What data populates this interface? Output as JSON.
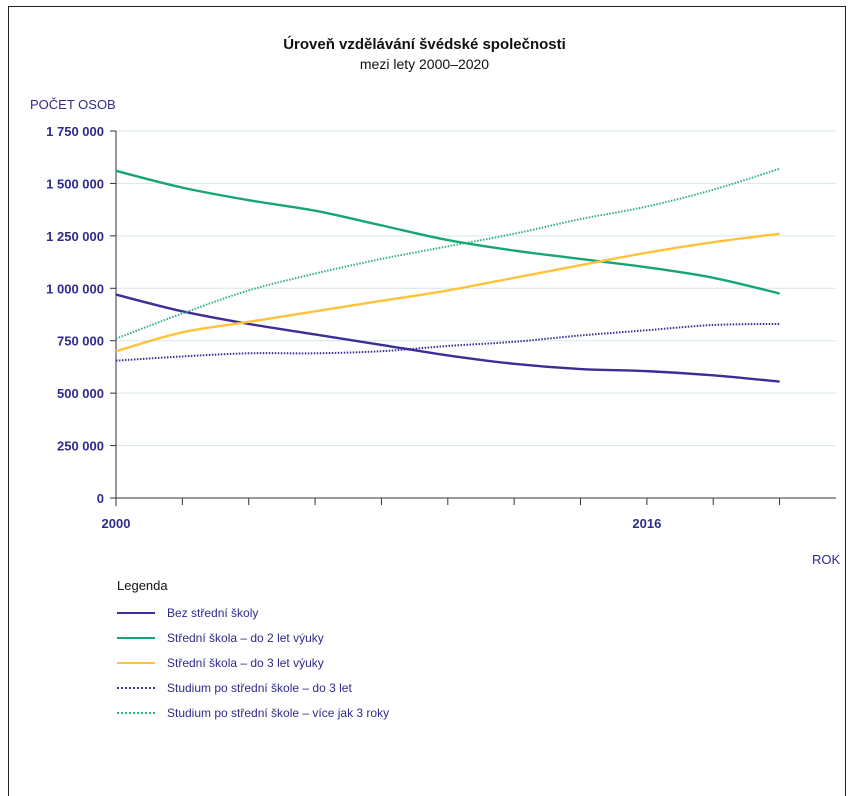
{
  "chart_data": {
    "type": "line",
    "title": "Úroveň vzdělávání švédské společnosti",
    "subtitle": "mezi lety 2000–2020",
    "ylabel": "POČET OSOB",
    "xlabel": "ROK",
    "x": [
      2000,
      2002,
      2004,
      2006,
      2008,
      2010,
      2012,
      2014,
      2016,
      2018,
      2020
    ],
    "x_tick_labels": [
      "2000",
      "2016"
    ],
    "y_ticks": [
      0,
      250000,
      500000,
      750000,
      1000000,
      1250000,
      1500000,
      1750000
    ],
    "y_tick_labels": [
      "0",
      "250 000",
      "500 000",
      "750 000",
      "1 000 000",
      "1 250 000",
      "1 500 000",
      "1 750 000"
    ],
    "xlim": [
      2000,
      2021.7
    ],
    "ylim": [
      0,
      1750000
    ],
    "grid": "horizontal",
    "legend_title": "Legenda",
    "legend_position": "bottom-left",
    "series": [
      {
        "name": "Bez střední školy",
        "color": "#3a2f96",
        "style": "solid",
        "values": [
          970000,
          890000,
          830000,
          780000,
          730000,
          680000,
          640000,
          615000,
          605000,
          585000,
          555000
        ]
      },
      {
        "name": "Střední škola – do 2 let výuky",
        "color": "#16a574",
        "style": "solid",
        "values": [
          1560000,
          1480000,
          1420000,
          1370000,
          1300000,
          1230000,
          1180000,
          1140000,
          1100000,
          1050000,
          975000
        ]
      },
      {
        "name": "Střední škola – do 3 let výuky",
        "color": "#ffc23a",
        "style": "solid",
        "values": [
          700000,
          790000,
          840000,
          890000,
          940000,
          990000,
          1050000,
          1110000,
          1170000,
          1220000,
          1260000
        ]
      },
      {
        "name": "Studium po střední škole – do 3 let",
        "color": "#3a2f96",
        "style": "dotted",
        "values": [
          655000,
          675000,
          690000,
          690000,
          700000,
          725000,
          745000,
          775000,
          800000,
          825000,
          830000
        ]
      },
      {
        "name": "Studium po střední škole – více jak 3 roky",
        "color": "#2fae8c",
        "style": "dotted",
        "values": [
          760000,
          880000,
          990000,
          1070000,
          1140000,
          1200000,
          1260000,
          1330000,
          1390000,
          1470000,
          1570000
        ]
      }
    ]
  }
}
